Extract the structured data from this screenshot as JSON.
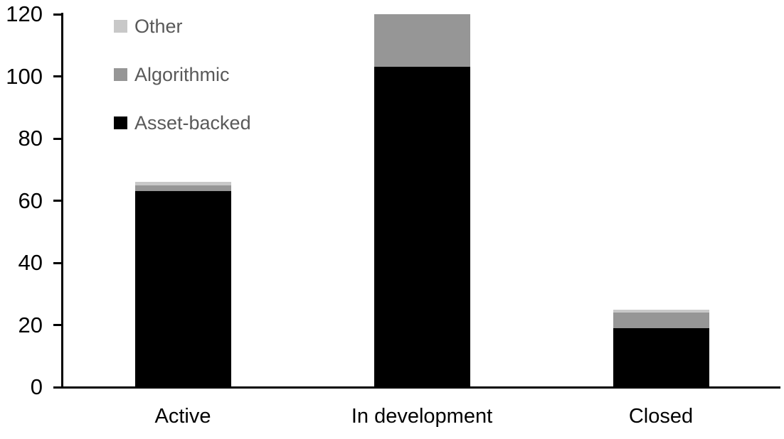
{
  "chart_data": {
    "type": "bar",
    "stacked": true,
    "title": "",
    "xlabel": "",
    "ylabel": "",
    "grid": false,
    "categories": [
      "Active",
      "In development",
      "Closed"
    ],
    "series": [
      {
        "name": "Asset-backed",
        "color": "#000000",
        "values": [
          63,
          103,
          19
        ]
      },
      {
        "name": "Algorithmic",
        "color": "#969696",
        "values": [
          2,
          17,
          5
        ]
      },
      {
        "name": "Other",
        "color": "#C8C8C8",
        "values": [
          1,
          0,
          1
        ]
      }
    ],
    "yaxis": {
      "min": 0,
      "max": 120,
      "step": 20,
      "tick_labels": [
        "0",
        "20",
        "40",
        "60",
        "80",
        "100",
        "120"
      ]
    },
    "legend": {
      "position": "top-left-inside",
      "items": [
        {
          "label": "Other",
          "color": "#C8C8C8"
        },
        {
          "label": "Algorithmic",
          "color": "#969696"
        },
        {
          "label": "Asset-backed",
          "color": "#000000"
        }
      ]
    }
  },
  "colors": {
    "background": "#FFFFFF",
    "axis": "#000000",
    "tick_label": "#000000",
    "category_label": "#000000",
    "legend_text": "#595959"
  }
}
